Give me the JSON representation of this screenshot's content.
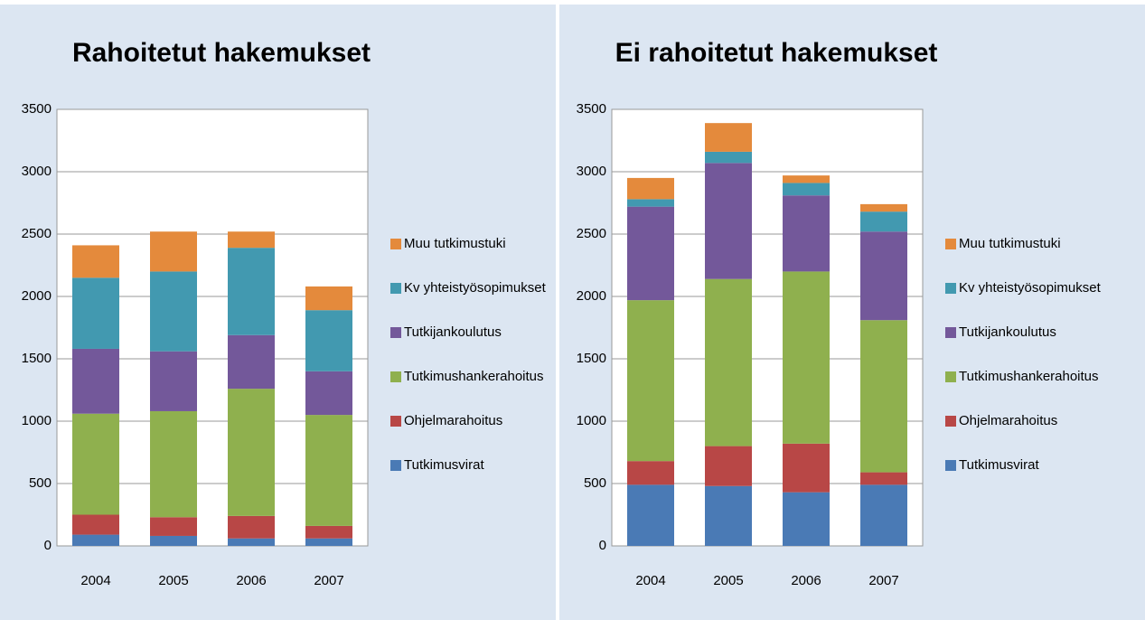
{
  "chart_data": [
    {
      "type": "stacked_bar",
      "title": "Rahoitetut hakemukset",
      "categories": [
        "2004",
        "2005",
        "2006",
        "2007"
      ],
      "series": [
        {
          "name": "Tutkimusvirat",
          "color": "#4a7ab5",
          "values": [
            90,
            80,
            60,
            60
          ]
        },
        {
          "name": "Ohjelmarahoitus",
          "color": "#b84746",
          "values": [
            160,
            150,
            180,
            100
          ]
        },
        {
          "name": "Tutkimushankerahoitus",
          "color": "#8fb04e",
          "values": [
            810,
            850,
            1020,
            890
          ]
        },
        {
          "name": "Tutkijankoulutus",
          "color": "#73589a",
          "values": [
            520,
            480,
            430,
            350
          ]
        },
        {
          "name": "Kv yhteistyösopimukset",
          "color": "#4299b0",
          "values": [
            570,
            640,
            700,
            490
          ]
        },
        {
          "name": "Muu tutkimustuki",
          "color": "#e48a3c",
          "values": [
            260,
            320,
            130,
            190
          ]
        }
      ],
      "ylim": [
        0,
        3500
      ],
      "yticks": [
        0,
        500,
        1000,
        1500,
        2000,
        2500,
        3000,
        3500
      ],
      "grid": true
    },
    {
      "type": "stacked_bar",
      "title": "Ei rahoitetut hakemukset",
      "categories": [
        "2004",
        "2005",
        "2006",
        "2007"
      ],
      "series": [
        {
          "name": "Tutkimusvirat",
          "color": "#4a7ab5",
          "values": [
            490,
            480,
            430,
            490
          ]
        },
        {
          "name": "Ohjelmarahoitus",
          "color": "#b84746",
          "values": [
            190,
            320,
            390,
            100
          ]
        },
        {
          "name": "Tutkimushankerahoitus",
          "color": "#8fb04e",
          "values": [
            1290,
            1340,
            1380,
            1220
          ]
        },
        {
          "name": "Tutkijankoulutus",
          "color": "#73589a",
          "values": [
            750,
            930,
            610,
            710
          ]
        },
        {
          "name": "Kv yhteistyösopimukset",
          "color": "#4299b0",
          "values": [
            60,
            90,
            100,
            160
          ]
        },
        {
          "name": "Muu tutkimustuki",
          "color": "#e48a3c",
          "values": [
            170,
            230,
            60,
            60
          ]
        }
      ],
      "ylim": [
        0,
        3500
      ],
      "yticks": [
        0,
        500,
        1000,
        1500,
        2000,
        2500,
        3000,
        3500
      ],
      "grid": true
    }
  ]
}
